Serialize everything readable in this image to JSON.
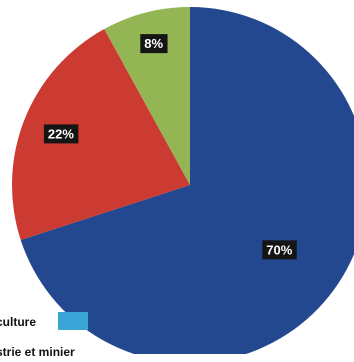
{
  "chart_data": {
    "type": "pie",
    "slices": [
      {
        "label": "70%",
        "value": 70,
        "color": "#23488f"
      },
      {
        "label": "22%",
        "value": 22,
        "color": "#cc3b32"
      },
      {
        "label": "8%",
        "value": 8,
        "color": "#94b553"
      }
    ],
    "start_angle_deg": 0,
    "direction": "clockwise"
  },
  "legend": {
    "items": [
      {
        "text": "culture",
        "color": "#3aa6d8"
      },
      {
        "text": "strie et minier",
        "color": "#23488f"
      }
    ]
  }
}
